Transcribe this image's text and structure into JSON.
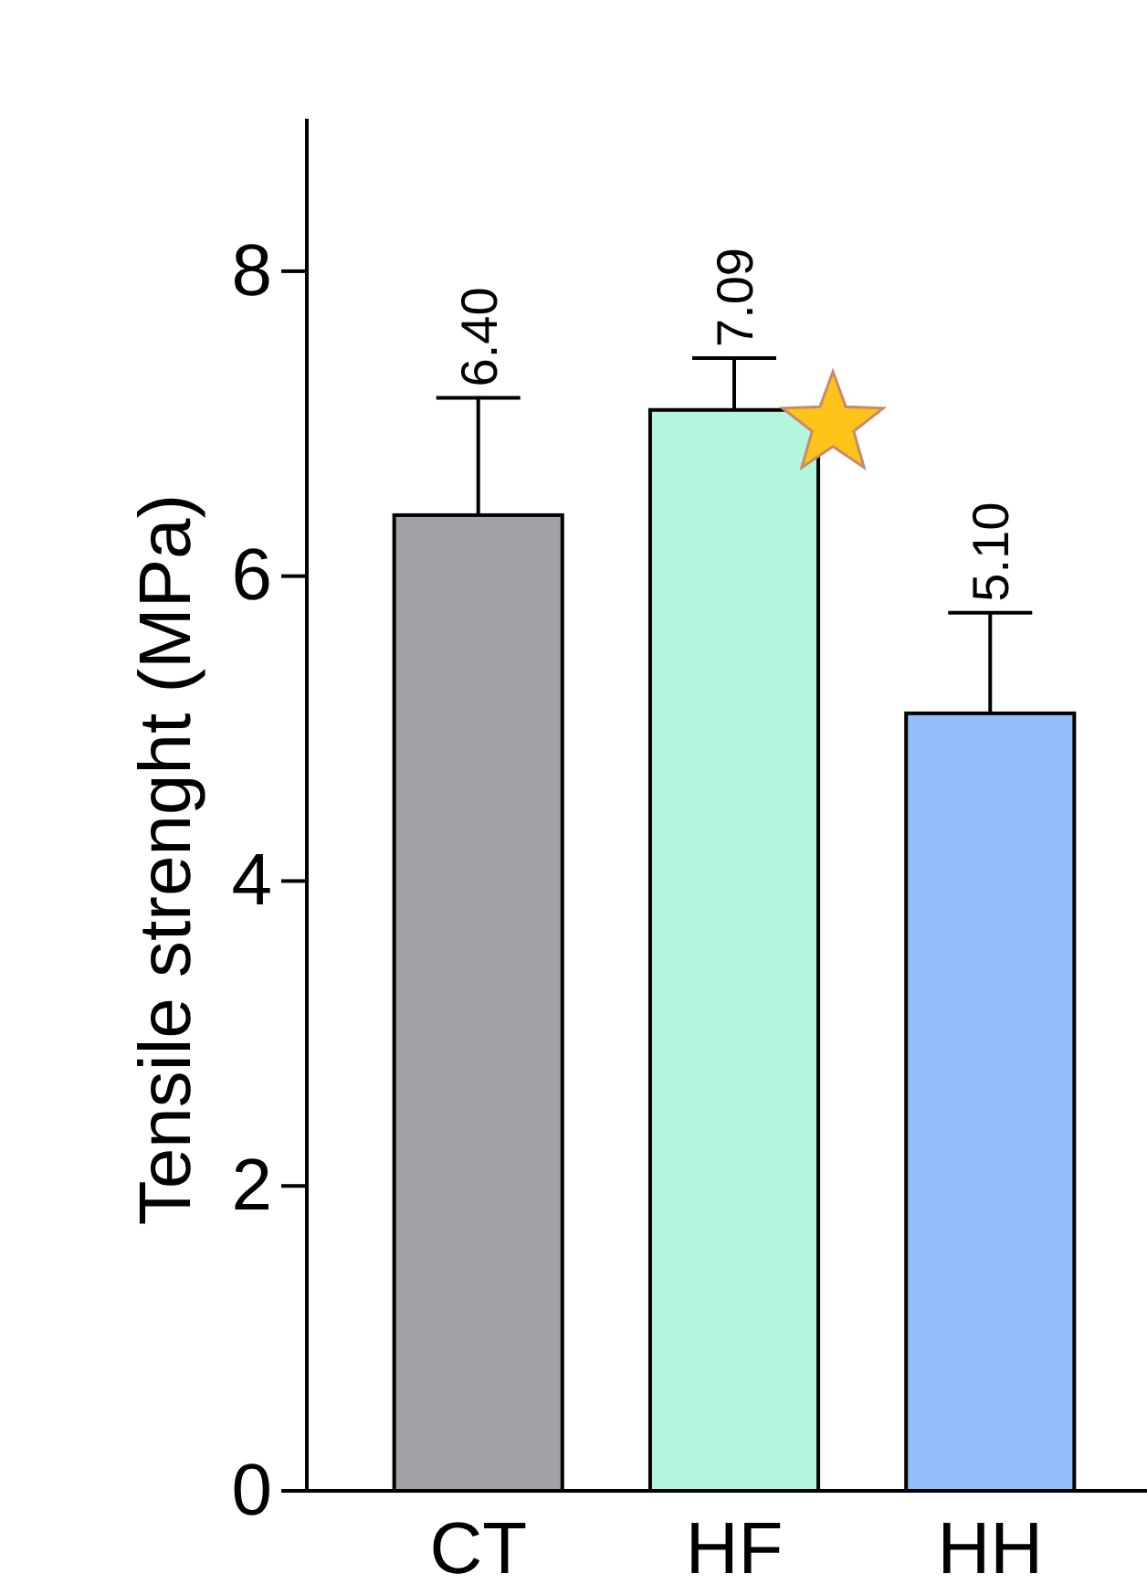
{
  "chart_data": {
    "type": "bar",
    "ylabel": "Tensile strenght (MPa)",
    "categories": [
      "CT",
      "HF",
      "HH"
    ],
    "values": [
      6.4,
      7.09,
      5.1
    ],
    "colors": [
      "#a2a1a6",
      "#b4f5dd",
      "#92bff9"
    ],
    "errors": [
      [
        6.4,
        7.17
      ],
      [
        7.09,
        7.43
      ],
      [
        5.1,
        5.76
      ]
    ],
    "value_labels": [
      "6.40",
      "7.09",
      "5.10"
    ],
    "ylim": [
      0,
      9
    ],
    "yticks": [
      0,
      2,
      4,
      6,
      8
    ],
    "grid": false
  }
}
